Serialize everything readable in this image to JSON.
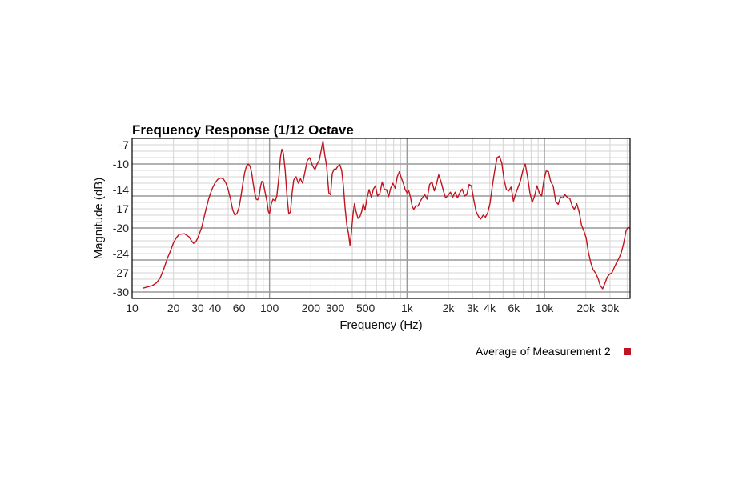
{
  "chart_data": {
    "type": "line",
    "title": "Frequency Response (1/12 Octave",
    "xlabel": "Frequency (Hz)",
    "ylabel": "Magnitude (dB)",
    "x_scale": "log",
    "xlim": [
      10,
      42000
    ],
    "ylim": [
      -31,
      -6
    ],
    "x_ticks": [
      {
        "value": 10,
        "label": "10"
      },
      {
        "value": 20,
        "label": "20"
      },
      {
        "value": 30,
        "label": "30"
      },
      {
        "value": 40,
        "label": "40"
      },
      {
        "value": 60,
        "label": "60"
      },
      {
        "value": 100,
        "label": "100"
      },
      {
        "value": 200,
        "label": "200"
      },
      {
        "value": 300,
        "label": "300"
      },
      {
        "value": 500,
        "label": "500"
      },
      {
        "value": 1000,
        "label": "1k"
      },
      {
        "value": 2000,
        "label": "2k"
      },
      {
        "value": 3000,
        "label": "3k"
      },
      {
        "value": 4000,
        "label": "4k"
      },
      {
        "value": 6000,
        "label": "6k"
      },
      {
        "value": 10000,
        "label": "10k"
      },
      {
        "value": 20000,
        "label": "20k"
      },
      {
        "value": 30000,
        "label": "30k"
      }
    ],
    "y_ticks": [
      {
        "value": -7,
        "label": "-7"
      },
      {
        "value": -10,
        "label": "-10"
      },
      {
        "value": -14,
        "label": "-14"
      },
      {
        "value": -17,
        "label": "-17"
      },
      {
        "value": -20,
        "label": "-20"
      },
      {
        "value": -24,
        "label": "-24"
      },
      {
        "value": -27,
        "label": "-27"
      },
      {
        "value": -30,
        "label": "-30"
      }
    ],
    "grid": true,
    "legend_position": "bottom-right",
    "series": [
      {
        "name": "Average of Measurement 2",
        "color": "#c0141e",
        "points": [
          [
            12,
            -29.4
          ],
          [
            13,
            -29.2
          ],
          [
            14,
            -29.0
          ],
          [
            15,
            -28.6
          ],
          [
            16,
            -27.8
          ],
          [
            17,
            -26.4
          ],
          [
            18,
            -24.8
          ],
          [
            19,
            -23.6
          ],
          [
            20,
            -22.3
          ],
          [
            21,
            -21.5
          ],
          [
            22,
            -21.0
          ],
          [
            24,
            -20.9
          ],
          [
            26,
            -21.4
          ],
          [
            27,
            -22.0
          ],
          [
            28,
            -22.4
          ],
          [
            29,
            -22.2
          ],
          [
            30,
            -21.6
          ],
          [
            32,
            -20.0
          ],
          [
            34,
            -17.6
          ],
          [
            36,
            -15.5
          ],
          [
            38,
            -14.0
          ],
          [
            40,
            -13.0
          ],
          [
            42,
            -12.4
          ],
          [
            44,
            -12.2
          ],
          [
            46,
            -12.3
          ],
          [
            48,
            -12.9
          ],
          [
            50,
            -14.0
          ],
          [
            52,
            -15.5
          ],
          [
            54,
            -17.2
          ],
          [
            56,
            -18.0
          ],
          [
            58,
            -17.7
          ],
          [
            60,
            -16.8
          ],
          [
            62,
            -15.0
          ],
          [
            64,
            -13.0
          ],
          [
            66,
            -11.3
          ],
          [
            68,
            -10.3
          ],
          [
            70,
            -10.0
          ],
          [
            72,
            -10.3
          ],
          [
            74,
            -11.3
          ],
          [
            76,
            -13.0
          ],
          [
            78,
            -14.5
          ],
          [
            80,
            -15.5
          ],
          [
            82,
            -15.6
          ],
          [
            84,
            -15.0
          ],
          [
            86,
            -13.5
          ],
          [
            88,
            -12.7
          ],
          [
            90,
            -12.9
          ],
          [
            92,
            -14.0
          ],
          [
            94,
            -15.0
          ],
          [
            96,
            -16.0
          ],
          [
            98,
            -17.4
          ],
          [
            100,
            -17.8
          ],
          [
            103,
            -16.2
          ],
          [
            106,
            -15.5
          ],
          [
            110,
            -15.8
          ],
          [
            113,
            -15.0
          ],
          [
            117,
            -12.0
          ],
          [
            120,
            -9.0
          ],
          [
            123,
            -7.7
          ],
          [
            126,
            -8.3
          ],
          [
            130,
            -11.0
          ],
          [
            134,
            -15.0
          ],
          [
            138,
            -17.8
          ],
          [
            142,
            -17.5
          ],
          [
            146,
            -14.5
          ],
          [
            150,
            -12.5
          ],
          [
            156,
            -12.0
          ],
          [
            162,
            -13.0
          ],
          [
            168,
            -12.3
          ],
          [
            174,
            -13.0
          ],
          [
            180,
            -11.5
          ],
          [
            188,
            -9.5
          ],
          [
            196,
            -9.0
          ],
          [
            205,
            -10.2
          ],
          [
            214,
            -10.9
          ],
          [
            222,
            -10.0
          ],
          [
            230,
            -9.4
          ],
          [
            238,
            -7.8
          ],
          [
            245,
            -6.4
          ],
          [
            252,
            -8.5
          ],
          [
            260,
            -10.2
          ],
          [
            270,
            -14.5
          ],
          [
            278,
            -14.8
          ],
          [
            286,
            -11.5
          ],
          [
            295,
            -10.8
          ],
          [
            305,
            -10.8
          ],
          [
            315,
            -10.3
          ],
          [
            325,
            -10.1
          ],
          [
            335,
            -11.0
          ],
          [
            345,
            -13.5
          ],
          [
            355,
            -17.0
          ],
          [
            365,
            -19.5
          ],
          [
            375,
            -20.8
          ],
          [
            385,
            -22.7
          ],
          [
            395,
            -20.5
          ],
          [
            405,
            -17.8
          ],
          [
            415,
            -16.2
          ],
          [
            425,
            -17.3
          ],
          [
            440,
            -18.5
          ],
          [
            455,
            -18.2
          ],
          [
            470,
            -17.3
          ],
          [
            480,
            -16.2
          ],
          [
            495,
            -17.2
          ],
          [
            510,
            -15.5
          ],
          [
            530,
            -14.0
          ],
          [
            550,
            -15.2
          ],
          [
            570,
            -13.9
          ],
          [
            590,
            -13.4
          ],
          [
            610,
            -15.0
          ],
          [
            635,
            -14.6
          ],
          [
            660,
            -12.8
          ],
          [
            685,
            -14.0
          ],
          [
            710,
            -14.0
          ],
          [
            735,
            -15.1
          ],
          [
            760,
            -13.8
          ],
          [
            790,
            -13.0
          ],
          [
            820,
            -13.8
          ],
          [
            850,
            -12.0
          ],
          [
            880,
            -11.2
          ],
          [
            910,
            -12.2
          ],
          [
            940,
            -13.0
          ],
          [
            970,
            -14.0
          ],
          [
            1000,
            -14.5
          ],
          [
            1030,
            -14.2
          ],
          [
            1060,
            -15.2
          ],
          [
            1090,
            -16.6
          ],
          [
            1120,
            -17.1
          ],
          [
            1160,
            -16.5
          ],
          [
            1200,
            -16.6
          ],
          [
            1250,
            -15.8
          ],
          [
            1300,
            -15.2
          ],
          [
            1350,
            -14.8
          ],
          [
            1400,
            -15.5
          ],
          [
            1460,
            -13.2
          ],
          [
            1520,
            -12.8
          ],
          [
            1580,
            -14.2
          ],
          [
            1640,
            -13.1
          ],
          [
            1700,
            -11.7
          ],
          [
            1770,
            -12.8
          ],
          [
            1840,
            -14.2
          ],
          [
            1910,
            -15.3
          ],
          [
            1990,
            -14.9
          ],
          [
            2070,
            -14.4
          ],
          [
            2150,
            -15.2
          ],
          [
            2240,
            -14.4
          ],
          [
            2330,
            -15.3
          ],
          [
            2420,
            -14.5
          ],
          [
            2520,
            -13.9
          ],
          [
            2620,
            -15.0
          ],
          [
            2720,
            -14.8
          ],
          [
            2830,
            -13.2
          ],
          [
            2940,
            -13.4
          ],
          [
            3060,
            -15.6
          ],
          [
            3180,
            -17.4
          ],
          [
            3310,
            -18.2
          ],
          [
            3440,
            -18.6
          ],
          [
            3580,
            -18.0
          ],
          [
            3720,
            -18.3
          ],
          [
            3870,
            -17.6
          ],
          [
            4020,
            -16.1
          ],
          [
            4180,
            -13.4
          ],
          [
            4350,
            -11.0
          ],
          [
            4520,
            -9.0
          ],
          [
            4700,
            -8.8
          ],
          [
            4890,
            -9.8
          ],
          [
            5090,
            -12.5
          ],
          [
            5290,
            -14.0
          ],
          [
            5500,
            -14.2
          ],
          [
            5720,
            -13.6
          ],
          [
            5950,
            -15.8
          ],
          [
            6190,
            -14.6
          ],
          [
            6440,
            -13.6
          ],
          [
            6700,
            -12.6
          ],
          [
            6970,
            -11.0
          ],
          [
            7250,
            -10.0
          ],
          [
            7540,
            -12.0
          ],
          [
            7840,
            -14.5
          ],
          [
            8150,
            -16.0
          ],
          [
            8480,
            -15.0
          ],
          [
            8820,
            -13.4
          ],
          [
            9170,
            -14.5
          ],
          [
            9540,
            -15.0
          ],
          [
            9920,
            -12.5
          ],
          [
            10300,
            -11.1
          ],
          [
            10700,
            -11.2
          ],
          [
            11100,
            -12.7
          ],
          [
            11600,
            -13.5
          ],
          [
            12100,
            -15.9
          ],
          [
            12600,
            -16.3
          ],
          [
            13100,
            -15.2
          ],
          [
            13600,
            -15.3
          ],
          [
            14100,
            -14.8
          ],
          [
            14700,
            -15.2
          ],
          [
            15300,
            -15.4
          ],
          [
            15900,
            -16.5
          ],
          [
            16500,
            -17.1
          ],
          [
            17200,
            -16.2
          ],
          [
            17900,
            -17.5
          ],
          [
            18600,
            -19.5
          ],
          [
            19400,
            -20.5
          ],
          [
            20100,
            -21.5
          ],
          [
            20900,
            -23.8
          ],
          [
            21800,
            -25.5
          ],
          [
            22600,
            -26.5
          ],
          [
            23500,
            -27.0
          ],
          [
            24500,
            -27.8
          ],
          [
            25500,
            -29.0
          ],
          [
            26500,
            -29.5
          ],
          [
            27500,
            -28.7
          ],
          [
            28600,
            -27.7
          ],
          [
            29800,
            -27.2
          ],
          [
            31000,
            -27.0
          ],
          [
            32200,
            -26.2
          ],
          [
            33500,
            -25.4
          ],
          [
            34900,
            -24.7
          ],
          [
            36300,
            -23.8
          ],
          [
            37700,
            -22.4
          ],
          [
            39200,
            -20.5
          ],
          [
            40200,
            -20.0
          ],
          [
            41000,
            -19.9
          ],
          [
            42000,
            -20.1
          ]
        ]
      }
    ]
  }
}
